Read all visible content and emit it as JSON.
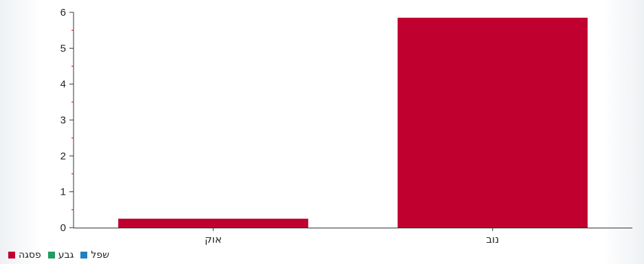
{
  "chart_data": {
    "type": "bar",
    "categories": [
      "אוק",
      "נוב"
    ],
    "series": [
      {
        "name": "פסגה",
        "color": "#c0002f",
        "values": [
          0.25,
          5.85
        ]
      },
      {
        "name": "גבע",
        "color": "#1e9e5e",
        "values": [
          null,
          null
        ]
      },
      {
        "name": "שפל",
        "color": "#1f7fc0",
        "values": [
          null,
          null
        ]
      }
    ],
    "ylim": [
      0,
      6
    ],
    "yticks": [
      0,
      1,
      2,
      3,
      4,
      5,
      6
    ],
    "legend_position": "bottom-left",
    "grid": false,
    "axis_minor_tick_color": "#e02020"
  }
}
